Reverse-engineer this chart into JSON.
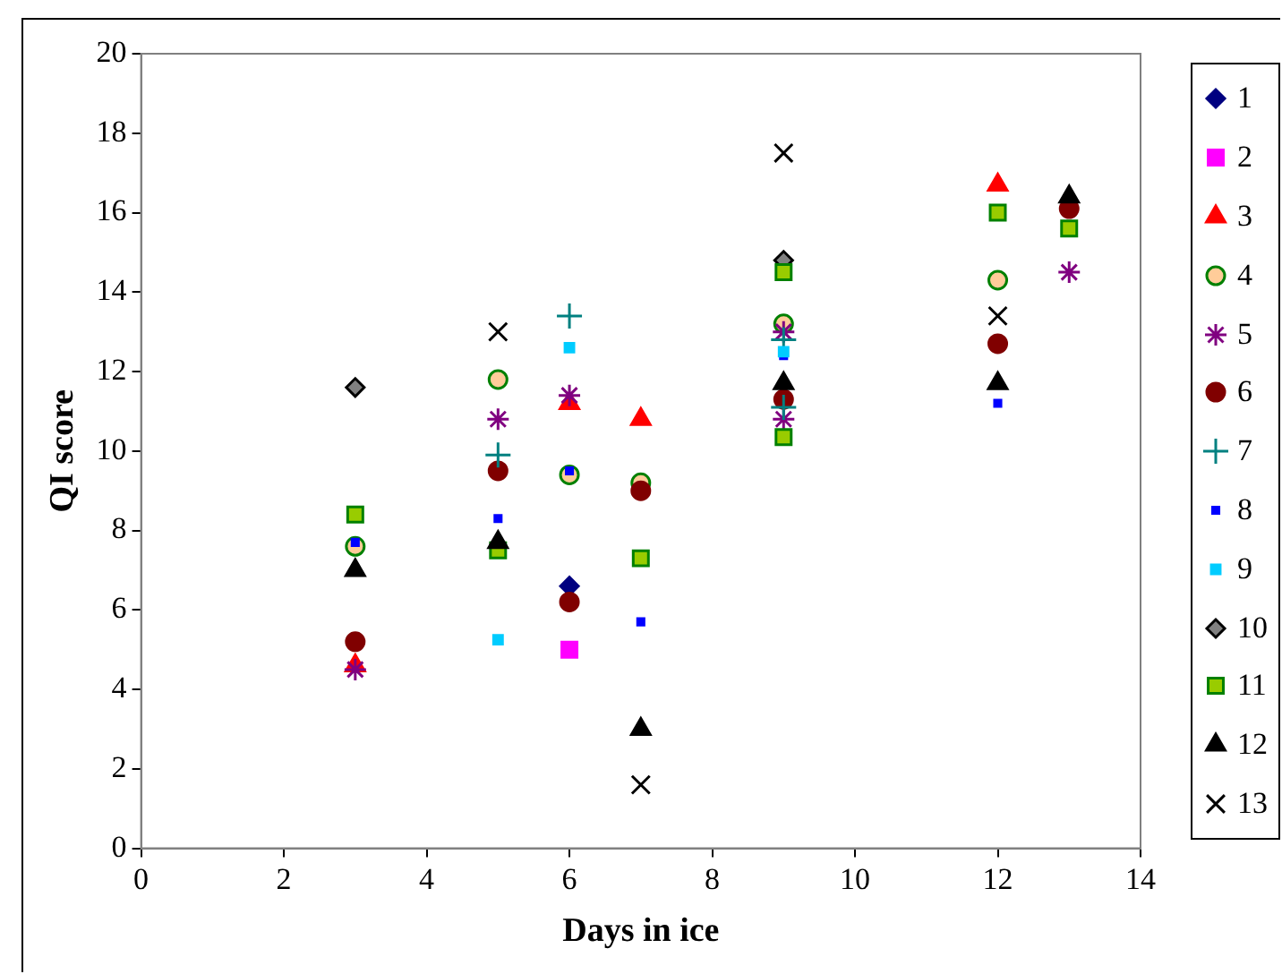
{
  "chart_data": {
    "type": "scatter",
    "xlabel": "Days in ice",
    "ylabel": "QI score",
    "xlim": [
      0,
      14
    ],
    "xticks": [
      0,
      2,
      4,
      6,
      8,
      10,
      12,
      14
    ],
    "ylim": [
      0,
      20
    ],
    "yticks": [
      0,
      2,
      4,
      6,
      8,
      10,
      12,
      14,
      16,
      18,
      20
    ],
    "grid": false,
    "legend": "right",
    "series": [
      {
        "name": "1",
        "color": "#000080",
        "marker": "diamond",
        "x": [
          6
        ],
        "values": [
          6.6
        ]
      },
      {
        "name": "2",
        "color": "#ff00ff",
        "marker": "square",
        "x": [
          6
        ],
        "values": [
          5.0
        ]
      },
      {
        "name": "3",
        "color": "#ff0000",
        "marker": "triangle",
        "x": [
          3,
          6,
          7,
          12
        ],
        "values": [
          4.6,
          11.2,
          10.8,
          16.7
        ]
      },
      {
        "name": "4",
        "color": "#ffcc99",
        "marker": "circle",
        "x": [
          3,
          5,
          6,
          7,
          9,
          12
        ],
        "values": [
          7.6,
          11.8,
          9.4,
          9.2,
          13.2,
          14.3
        ]
      },
      {
        "name": "5",
        "color": "#800080",
        "marker": "cross",
        "x": [
          3,
          5,
          6,
          9,
          9,
          13
        ],
        "values": [
          4.5,
          10.8,
          11.4,
          13.0,
          10.8,
          14.5
        ]
      },
      {
        "name": "6",
        "color": "#800000",
        "marker": "circle",
        "x": [
          3,
          5,
          6,
          7,
          9,
          12,
          13
        ],
        "values": [
          5.2,
          9.5,
          6.2,
          9.0,
          11.3,
          12.7,
          16.1
        ]
      },
      {
        "name": "7",
        "color": "#008080",
        "marker": "cross",
        "x": [
          5,
          6,
          9,
          9
        ],
        "values": [
          9.9,
          13.4,
          12.8,
          11.1
        ]
      },
      {
        "name": "8",
        "color": "#0000ff",
        "marker": "square",
        "x": [
          3,
          5,
          6,
          7,
          9,
          12
        ],
        "values": [
          7.7,
          8.3,
          9.5,
          5.7,
          12.4,
          11.2
        ]
      },
      {
        "name": "9",
        "color": "#00ccff",
        "marker": "square",
        "x": [
          5,
          6,
          9
        ],
        "values": [
          5.25,
          12.6,
          12.5
        ]
      },
      {
        "name": "10",
        "color": "#808080",
        "marker": "diamond",
        "x": [
          3,
          9
        ],
        "values": [
          11.6,
          14.8
        ]
      },
      {
        "name": "11",
        "color": "#99cc00",
        "marker": "square",
        "x": [
          3,
          5,
          7,
          9,
          9,
          12,
          13
        ],
        "values": [
          8.4,
          7.5,
          7.3,
          14.5,
          10.35,
          16.0,
          15.6
        ]
      },
      {
        "name": "12",
        "color": "#000000",
        "marker": "triangle",
        "x": [
          3,
          5,
          7,
          9,
          12,
          13
        ],
        "values": [
          7.0,
          7.7,
          3.0,
          11.7,
          11.7,
          16.4
        ]
      },
      {
        "name": "13",
        "color": "#000000",
        "marker": "cross",
        "x": [
          5,
          7,
          9,
          12
        ],
        "values": [
          13.0,
          1.6,
          17.5,
          13.4
        ]
      }
    ]
  }
}
